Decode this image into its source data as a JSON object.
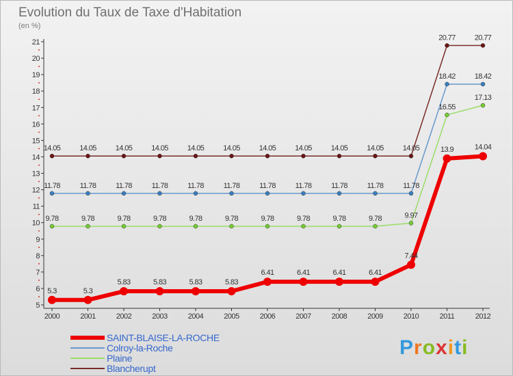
{
  "chart_data": {
    "type": "line",
    "title": "Evolution du Taux de Taxe d'Habitation",
    "subtitle": "(en %)",
    "x": [
      "2000",
      "2001",
      "2002",
      "2003",
      "2004",
      "2005",
      "2006",
      "2007",
      "2008",
      "2009",
      "2010",
      "2011",
      "2012"
    ],
    "ylim": [
      5,
      21
    ],
    "yticks": [
      5,
      6,
      7,
      8,
      9,
      10,
      11,
      12,
      13,
      14,
      15,
      16,
      17,
      18,
      19,
      20,
      21
    ],
    "grid": false,
    "legend_position": "bottom-left",
    "series": [
      {
        "name": "Blancherupt",
        "color": "#7b2a2a",
        "marker": "#6b1414",
        "width": 1.5,
        "radius": 3,
        "values": [
          14.05,
          14.05,
          14.05,
          14.05,
          14.05,
          14.05,
          14.05,
          14.05,
          14.05,
          14.05,
          14.05,
          20.77,
          20.77
        ],
        "labels": [
          "14.05",
          "14.05",
          "14.05",
          "14.05",
          "14.05",
          "14.05",
          "14.05",
          "14.05",
          "14.05",
          "14.05",
          "14.05",
          "20.77",
          "20.77"
        ]
      },
      {
        "name": "Colroy-la-Roche",
        "color": "#6699cc",
        "marker": "#3a7fc1",
        "width": 1.5,
        "radius": 3,
        "values": [
          11.78,
          11.78,
          11.78,
          11.78,
          11.78,
          11.78,
          11.78,
          11.78,
          11.78,
          11.78,
          11.78,
          18.42,
          18.42
        ],
        "labels": [
          "11.78",
          "11.78",
          "11.78",
          "11.78",
          "11.78",
          "11.78",
          "11.78",
          "11.78",
          "11.78",
          "11.78",
          "11.78",
          "18.42",
          "18.42"
        ]
      },
      {
        "name": "Plaine",
        "color": "#99dd66",
        "marker": "#77cc33",
        "width": 1.5,
        "radius": 3,
        "values": [
          9.78,
          9.78,
          9.78,
          9.78,
          9.78,
          9.78,
          9.78,
          9.78,
          9.78,
          9.78,
          9.97,
          16.55,
          17.13
        ],
        "labels": [
          "9.78",
          "9.78",
          "9.78",
          "9.78",
          "9.78",
          "9.78",
          "9.78",
          "9.78",
          "9.78",
          "9.78",
          "9.97",
          "16.55",
          "17.13"
        ]
      },
      {
        "name": "SAINT-BLAISE-LA-ROCHE",
        "color": "#ee0000",
        "marker": "#ee0000",
        "width": 6,
        "radius": 6,
        "values": [
          5.3,
          5.3,
          5.83,
          5.83,
          5.83,
          5.83,
          6.41,
          6.41,
          6.41,
          6.41,
          7.44,
          13.9,
          14.04
        ],
        "labels": [
          "5.3",
          "5.3",
          "5.83",
          "5.83",
          "5.83",
          "5.83",
          "6.41",
          "6.41",
          "6.41",
          "6.41",
          "7.44",
          "13.9",
          "14.04"
        ]
      }
    ],
    "legend_order": [
      "SAINT-BLAISE-LA-ROCHE",
      "Colroy-la-Roche",
      "Plaine",
      "Blancherupt"
    ]
  },
  "brand": {
    "letters": [
      "P",
      "r",
      "o",
      "x",
      "i",
      "t",
      "i"
    ],
    "colors": [
      "#3399dd",
      "#ee7722",
      "#88bb22",
      "#dd3333",
      "#ee9922",
      "#3399dd",
      "#88bb22"
    ]
  }
}
